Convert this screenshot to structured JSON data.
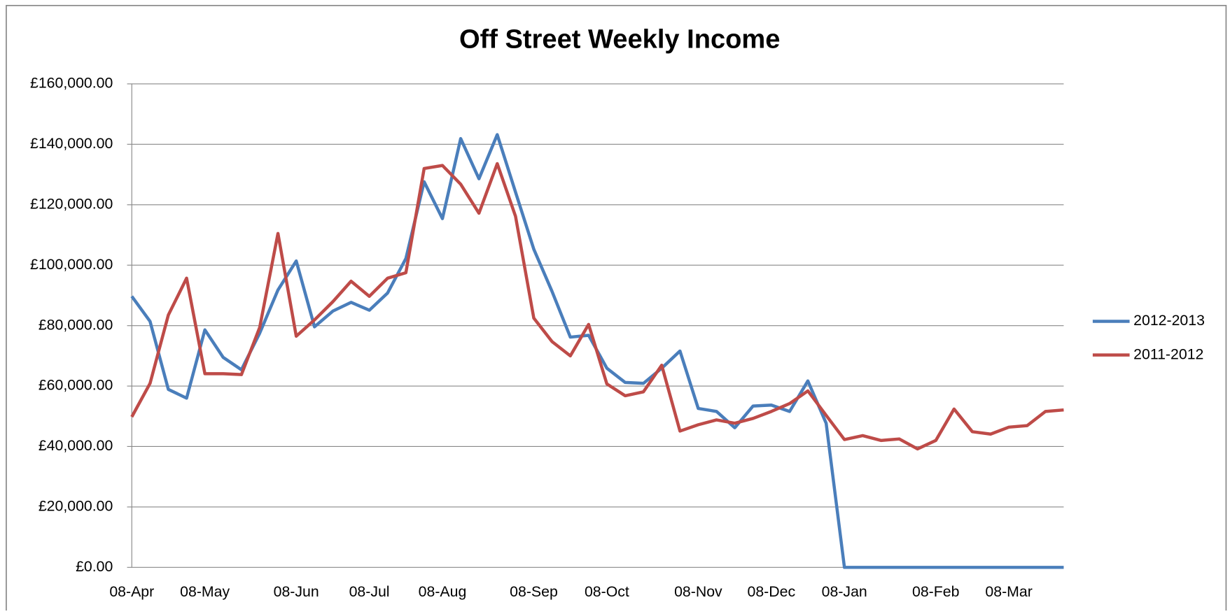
{
  "chart_data": {
    "type": "line",
    "title": "Off Street Weekly Income",
    "categories": [
      "08-Apr",
      null,
      null,
      null,
      "08-May",
      null,
      null,
      null,
      null,
      "08-Jun",
      null,
      null,
      null,
      "08-Jul",
      null,
      null,
      null,
      "08-Aug",
      null,
      null,
      null,
      null,
      "08-Sep",
      null,
      null,
      null,
      "08-Oct",
      null,
      null,
      null,
      null,
      "08-Nov",
      null,
      null,
      null,
      "08-Dec",
      null,
      null,
      null,
      "08-Jan",
      null,
      null,
      null,
      null,
      "08-Feb",
      null,
      null,
      null,
      "08-Mar",
      null,
      null,
      null
    ],
    "series": [
      {
        "name": "2012-2013",
        "color": "#4a7ebb",
        "values": [
          89700,
          81400,
          58900,
          56000,
          78600,
          69500,
          65400,
          77500,
          91800,
          101400,
          79600,
          84800,
          87700,
          85100,
          90800,
          102200,
          127600,
          115400,
          141900,
          128600,
          143200,
          124200,
          105300,
          91300,
          76200,
          76800,
          65900,
          61200,
          60900,
          65900,
          71600,
          52600,
          51600,
          46200,
          53400,
          53700,
          51600,
          61700,
          47700,
          0,
          0,
          0,
          0,
          0,
          0,
          0,
          0,
          0,
          0,
          0,
          0,
          0
        ]
      },
      {
        "name": "2011-2012",
        "color": "#be4b48",
        "values": [
          49800,
          60900,
          83500,
          95700,
          64100,
          64100,
          63800,
          79400,
          110500,
          76500,
          81900,
          87900,
          94700,
          89700,
          95700,
          97500,
          132000,
          133000,
          126800,
          117200,
          133600,
          116200,
          82500,
          74700,
          70000,
          80400,
          60700,
          56800,
          58100,
          66900,
          45100,
          47200,
          48800,
          47700,
          49300,
          51600,
          54200,
          58400,
          50300,
          42300,
          43600,
          42000,
          42500,
          39200,
          42000,
          52400,
          44900,
          44100,
          46400,
          46900,
          51600,
          52100
        ]
      }
    ],
    "ylim": [
      0,
      160000
    ],
    "yticks": [
      {
        "value": 0,
        "label": "£0.00"
      },
      {
        "value": 20000,
        "label": "£20,000.00"
      },
      {
        "value": 40000,
        "label": "£40,000.00"
      },
      {
        "value": 60000,
        "label": "£60,000.00"
      },
      {
        "value": 80000,
        "label": "£80,000.00"
      },
      {
        "value": 100000,
        "label": "£100,000.00"
      },
      {
        "value": 120000,
        "label": "£120,000.00"
      },
      {
        "value": 140000,
        "label": "£140,000.00"
      },
      {
        "value": 160000,
        "label": "£160,000.00"
      }
    ],
    "grid": true,
    "legend": "right"
  }
}
